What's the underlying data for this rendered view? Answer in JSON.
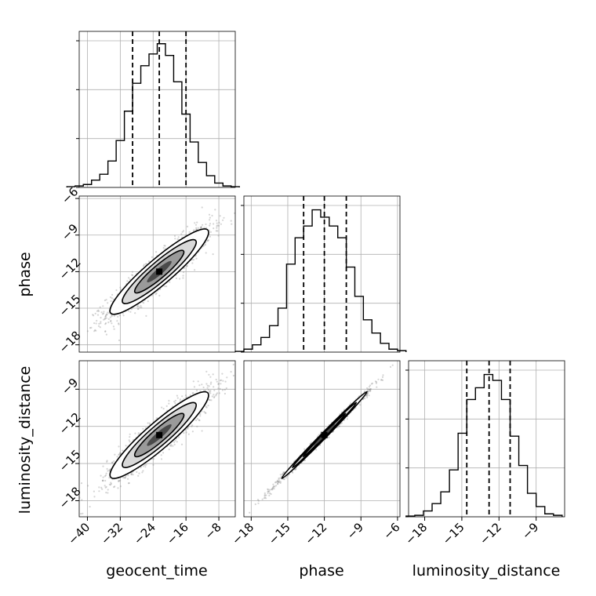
{
  "chart_data": {
    "type": "corner",
    "parameters": [
      "geocent_time",
      "phase",
      "luminosity_distance"
    ],
    "grid": true,
    "histograms": [
      {
        "name": "geocent_time",
        "bins": [
          -45,
          -43,
          -41,
          -39,
          -37,
          -35,
          -33,
          -31,
          -29,
          -27,
          -25,
          -23,
          -21,
          -19,
          -17,
          -15,
          -13,
          -11,
          -9,
          -7,
          -5,
          -3
        ],
        "density": [
          0.005,
          0.01,
          0.02,
          0.05,
          0.09,
          0.18,
          0.32,
          0.52,
          0.71,
          0.83,
          0.91,
          0.98,
          0.9,
          0.72,
          0.5,
          0.31,
          0.17,
          0.08,
          0.03,
          0.01,
          0.005
        ],
        "quantiles": [
          -29,
          -22.5,
          -16
        ]
      },
      {
        "name": "phase",
        "bins": [
          -19.3,
          -18.6,
          -17.9,
          -17.2,
          -16.5,
          -15.8,
          -15.1,
          -14.4,
          -13.7,
          -13.0,
          -12.3,
          -11.6,
          -10.9,
          -10.2,
          -9.5,
          -8.8,
          -8.1,
          -7.4,
          -6.7,
          -6.0,
          -5.3
        ],
        "density": [
          0.005,
          0.02,
          0.05,
          0.1,
          0.18,
          0.3,
          0.6,
          0.78,
          0.86,
          0.97,
          0.92,
          0.86,
          0.78,
          0.58,
          0.38,
          0.22,
          0.13,
          0.06,
          0.02,
          0.01
        ],
        "quantiles": [
          -13.7,
          -12.0,
          -10.2
        ]
      },
      {
        "name": "luminosity_distance",
        "bins": [
          -19.5,
          -18.8,
          -18.1,
          -17.4,
          -16.7,
          -16.0,
          -15.3,
          -14.6,
          -13.9,
          -13.2,
          -12.5,
          -11.8,
          -11.1,
          -10.4,
          -9.7,
          -9.0,
          -8.3,
          -7.6,
          -6.9
        ],
        "density": [
          0.005,
          0.01,
          0.04,
          0.09,
          0.17,
          0.32,
          0.57,
          0.8,
          0.88,
          0.97,
          0.93,
          0.8,
          0.55,
          0.35,
          0.16,
          0.07,
          0.02,
          0.01
        ],
        "quantiles": [
          -14.6,
          -12.8,
          -11.1
        ]
      }
    ],
    "pairs": [
      {
        "x": "geocent_time",
        "y": "phase",
        "mean": [
          -22.5,
          -12.0
        ],
        "sd": [
          6.0,
          1.75
        ],
        "corr": 0.92
      },
      {
        "x": "geocent_time",
        "y": "luminosity_distance",
        "mean": [
          -22.5,
          -12.7
        ],
        "sd": [
          6.0,
          1.75
        ],
        "corr": 0.92
      },
      {
        "x": "phase",
        "y": "luminosity_distance",
        "mean": [
          -12.0,
          -12.7
        ],
        "sd": [
          1.75,
          1.75
        ],
        "corr": 0.996
      }
    ],
    "axes": {
      "geocent_time": {
        "range": [
          -42,
          -4
        ],
        "ticks": [
          -40,
          -32,
          -24,
          -16,
          -8
        ]
      },
      "phase": {
        "range": [
          -18.6,
          -5.8
        ],
        "ticks": [
          -18,
          -15,
          -12,
          -9,
          -6
        ]
      },
      "luminosity_distance": {
        "range": [
          -19.3,
          -6.7
        ],
        "ticks": [
          -18,
          -15,
          -12,
          -9
        ]
      }
    },
    "xlabels": [
      "geocent_time",
      "phase",
      "luminosity_distance"
    ],
    "ylabels": [
      "",
      "phase",
      "luminosity_distance"
    ]
  }
}
